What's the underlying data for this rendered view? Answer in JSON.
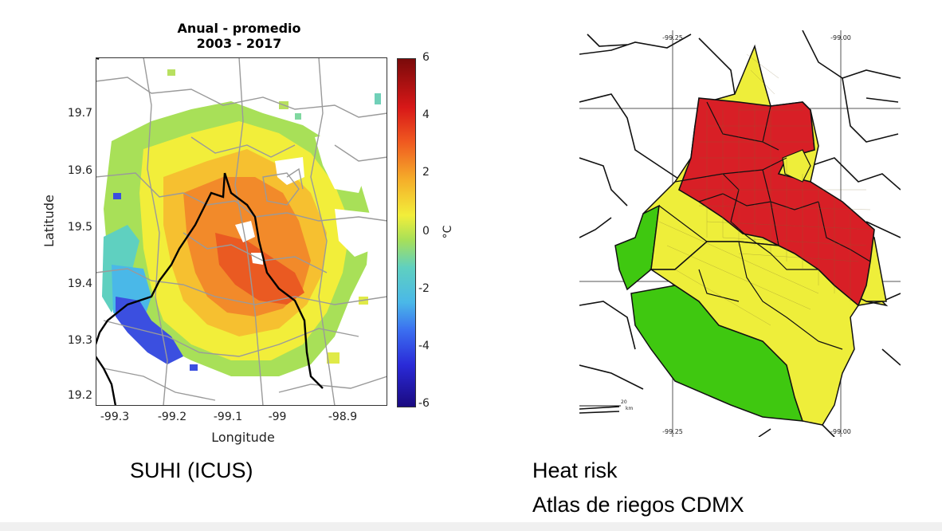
{
  "left_panel": {
    "title_line1": "Anual - promedio",
    "title_line2": "2003 - 2017",
    "xlabel": "Longitude",
    "ylabel": "Latitude",
    "x_ticks": [
      "-99.3",
      "-99.2",
      "-99.1",
      "-99",
      "-98.9"
    ],
    "y_ticks": [
      "19.7",
      "19.6",
      "19.5",
      "19.4",
      "19.3",
      "19.2"
    ],
    "colorbar_ticks": [
      "6",
      "4",
      "2",
      "0",
      "-2",
      "-4",
      "-6"
    ],
    "colorbar_unit": "°C",
    "caption": "SUHI (ICUS)"
  },
  "right_panel": {
    "lon_labels_top": [
      "-99.25",
      "-99.00"
    ],
    "lon_labels_bottom": [
      "-99.25",
      "-99.00"
    ],
    "scale_label": "20",
    "scale_unit": "km",
    "caption_line1": "Heat risk",
    "caption_line2": "Atlas de riegos CDMX"
  },
  "colors": {
    "risk_high": "#d81f26",
    "risk_medium": "#eeee3a",
    "risk_low": "#3fc810"
  }
}
